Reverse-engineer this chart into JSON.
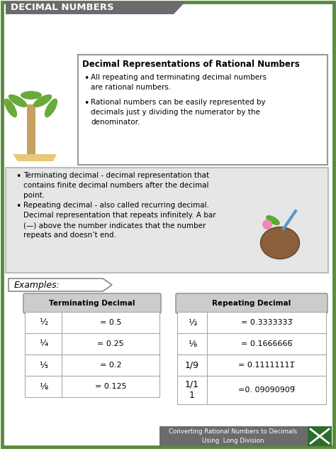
{
  "bg_color": "#ffffff",
  "border_color": "#5a8a3c",
  "header_bg": "#6b6b6b",
  "header_text": "DECIMAL NUMBERS",
  "header_text_color": "#ffffff",
  "top_box_title": "Decimal Representations of Rational Numbers",
  "top_box_bullet1": "All repeating and terminating decimal numbers\nare rational numbers.",
  "top_box_bullet2": "Rational numbers can be easily represented by\ndecimals just y dividing the numerator by the\ndenominator.",
  "mid_bullet1": "Terminating decimal - decimal representation that\ncontains finite decimal numbers after the decimal\npoint.",
  "mid_bullet2": "Repeating decimal - also called recurring decimal.\nDecimal representation that repeats infinitely. A bar\n(—) above the number indicates that the number\nrepeats and doesn’t end.",
  "mid_box_bg": "#e6e6e6",
  "examples_label": "Examples:",
  "term_header": "Terminating Decimal",
  "rep_header": "Repeating Decimal",
  "term_rows_col1": [
    "½",
    "¼",
    "⅕",
    "⅛"
  ],
  "term_rows_col2": [
    "= 0.5",
    "= 0.25",
    "= 0.2",
    "= 0.125"
  ],
  "rep_rows_col1": [
    "⅓",
    "⅙",
    "1/9",
    "1/1\n1"
  ],
  "rep_rows_col2": [
    "= 0.3333333̅",
    "= 0.1666666̅",
    "= 0.11111111̅̅",
    "=0. 09090909̅"
  ],
  "footer_text": "Converting Rational Numbers to Decimals\nUsing  Long Division",
  "footer_bg": "#6b6b6b",
  "footer_text_color": "#ffffff",
  "icon_bg": "#2e6b2e",
  "table_border_color": "#aaaaaa",
  "table_header_bg": "#cccccc"
}
